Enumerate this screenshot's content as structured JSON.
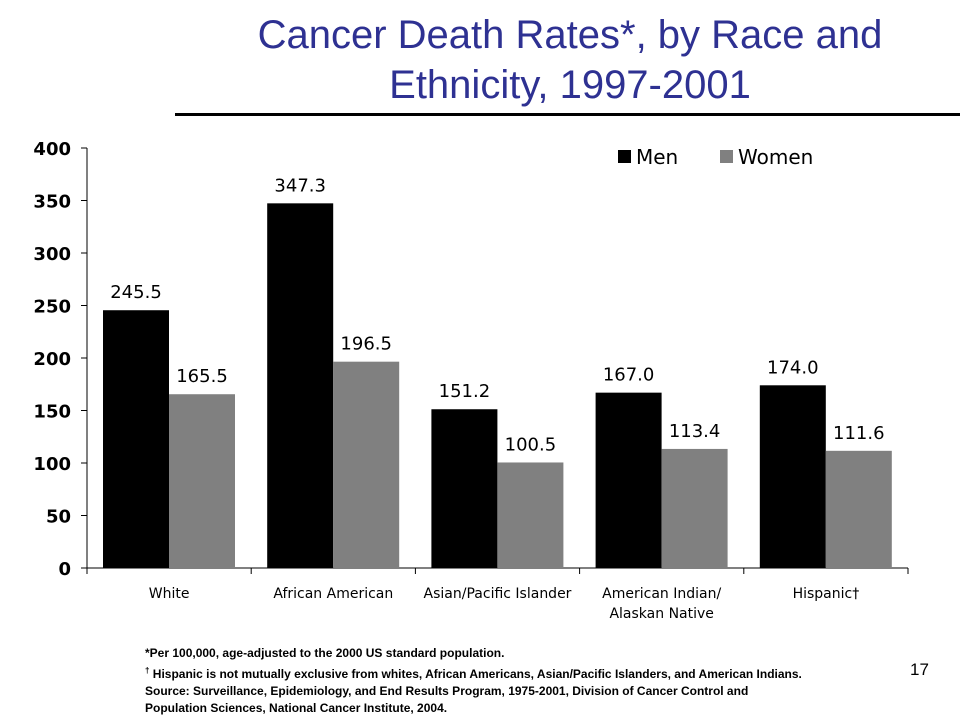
{
  "slide": {
    "title_line1": "Cancer Death Rates*, by Race and",
    "title_line2": "Ethnicity, 1997-2001",
    "page_number": "17"
  },
  "footnotes": {
    "note1": "*Per 100,000, age-adjusted to the 2000 US standard population.",
    "note2_mark": "†",
    "note2": " Hispanic is not mutually exclusive from whites, African Americans, Asian/Pacific Islanders, and American Indians.",
    "source_line1": "Source: Surveillance, Epidemiology, and End Results Program, 1975-2001, Division of Cancer Control and",
    "source_line2": "Population Sciences, National Cancer Institute, 2004."
  },
  "chart_data": {
    "type": "bar",
    "categories": [
      "White",
      "African American",
      "Asian/Pacific Islander",
      "American Indian/\nAlaskan Native",
      "Hispanic†"
    ],
    "series": [
      {
        "name": "Men",
        "values": [
          245.5,
          347.3,
          151.2,
          167.0,
          174.0
        ],
        "labels": [
          "245.5",
          "347.3",
          "151.2",
          "167.0",
          "174.0"
        ],
        "color": "#000000"
      },
      {
        "name": "Women",
        "values": [
          165.5,
          196.5,
          100.5,
          113.4,
          111.6
        ],
        "labels": [
          "165.5",
          "196.5",
          "100.5",
          "113.4",
          "111.6"
        ],
        "color": "#808080"
      }
    ],
    "ylim": [
      0,
      400
    ],
    "yticks": [
      "0",
      "50",
      "100",
      "150",
      "200",
      "250",
      "300",
      "350",
      "400"
    ],
    "grid": false,
    "legend_position": "top-right"
  }
}
